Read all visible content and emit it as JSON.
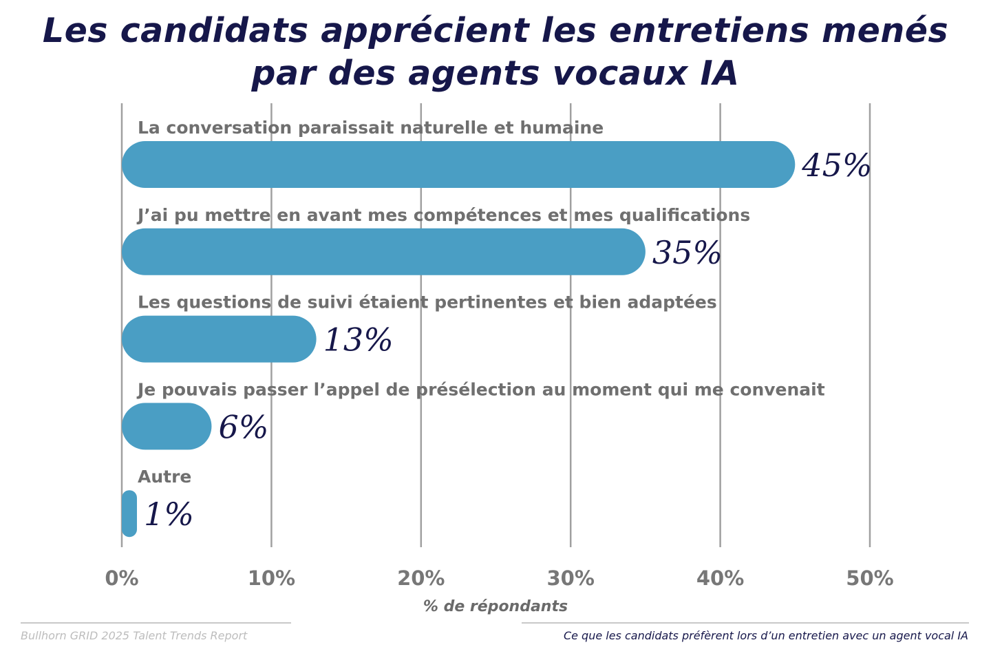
{
  "chart_data": {
    "type": "bar",
    "orientation": "horizontal",
    "title": "Les candidats apprécient les entretiens menés par des agents vocaux IA",
    "title_lines": [
      "Les candidats apprécient les entretiens menés",
      "par des agents vocaux IA"
    ],
    "categories": [
      "La conversation paraissait naturelle et humaine",
      "J’ai pu mettre en avant mes compétences et mes qualifications",
      "Les questions de suivi étaient pertinentes et bien adaptées",
      "Je pouvais passer l’appel de présélection au moment qui me convenait",
      "Autre"
    ],
    "values": [
      45,
      35,
      13,
      6,
      1
    ],
    "data_labels": [
      "45%",
      "35%",
      "13%",
      "6%",
      "1%"
    ],
    "xlabel": "% de répondants",
    "xlim": [
      0,
      50
    ],
    "xticks": [
      0,
      10,
      20,
      30,
      40,
      50
    ],
    "xtick_labels": [
      "0%",
      "10%",
      "20%",
      "30%",
      "40%",
      "50%"
    ],
    "grid": "vertical",
    "colors": {
      "bar": "#4a9ec4",
      "title": "#16174a",
      "label": "#6f6f6f",
      "grid": "#a0a0a0"
    }
  },
  "footer": {
    "source": "Bullhorn GRID 2025 Talent Trends Report",
    "caption": "Ce que les candidats préfèrent lors d’un entretien avec un agent vocal IA"
  }
}
